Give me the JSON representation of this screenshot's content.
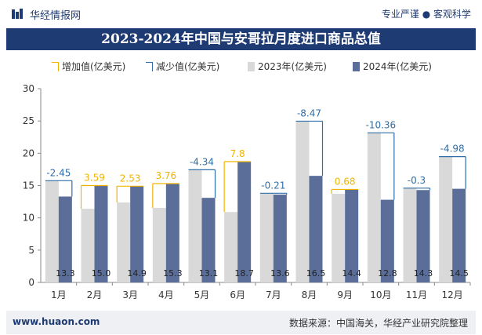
{
  "header": {
    "site_name": "华经情报网",
    "slogan": "专业严谨 ● 客观科学"
  },
  "chart_data": {
    "type": "bar",
    "title": "2023-2024年中国与安哥拉月度进口商品总值",
    "categories": [
      "1月",
      "2月",
      "3月",
      "4月",
      "5月",
      "6月",
      "7月",
      "8月",
      "9月",
      "10月",
      "11月",
      "12月"
    ],
    "series": [
      {
        "name": "2023年(亿美元)",
        "values": [
          15.75,
          11.41,
          12.37,
          11.54,
          17.44,
          10.9,
          13.81,
          24.97,
          13.72,
          23.16,
          14.6,
          19.48
        ],
        "color": "#d9d9d9"
      },
      {
        "name": "2024年(亿美元)",
        "values": [
          13.3,
          15.0,
          14.9,
          15.3,
          13.1,
          18.7,
          13.6,
          16.5,
          14.4,
          12.8,
          14.3,
          14.5
        ],
        "color": "#5b6e99"
      }
    ],
    "differences": {
      "increase_label": "增加值(亿美元)",
      "decrease_label": "减少值(亿美元)",
      "values": [
        -2.45,
        3.59,
        2.53,
        3.76,
        -4.34,
        7.8,
        -0.21,
        -8.47,
        0.68,
        -10.36,
        -0.3,
        -4.98
      ],
      "increase_color": "#f0b400",
      "decrease_color": "#2f6ea8"
    },
    "ylim": [
      0,
      30
    ],
    "yticks": [
      0,
      5,
      10,
      15,
      20,
      25,
      30
    ],
    "grid": false,
    "legend_position": "top"
  },
  "footer": {
    "website": "www.huaon.com",
    "source": "数据来源：中国海关，华经产业研究院整理"
  }
}
